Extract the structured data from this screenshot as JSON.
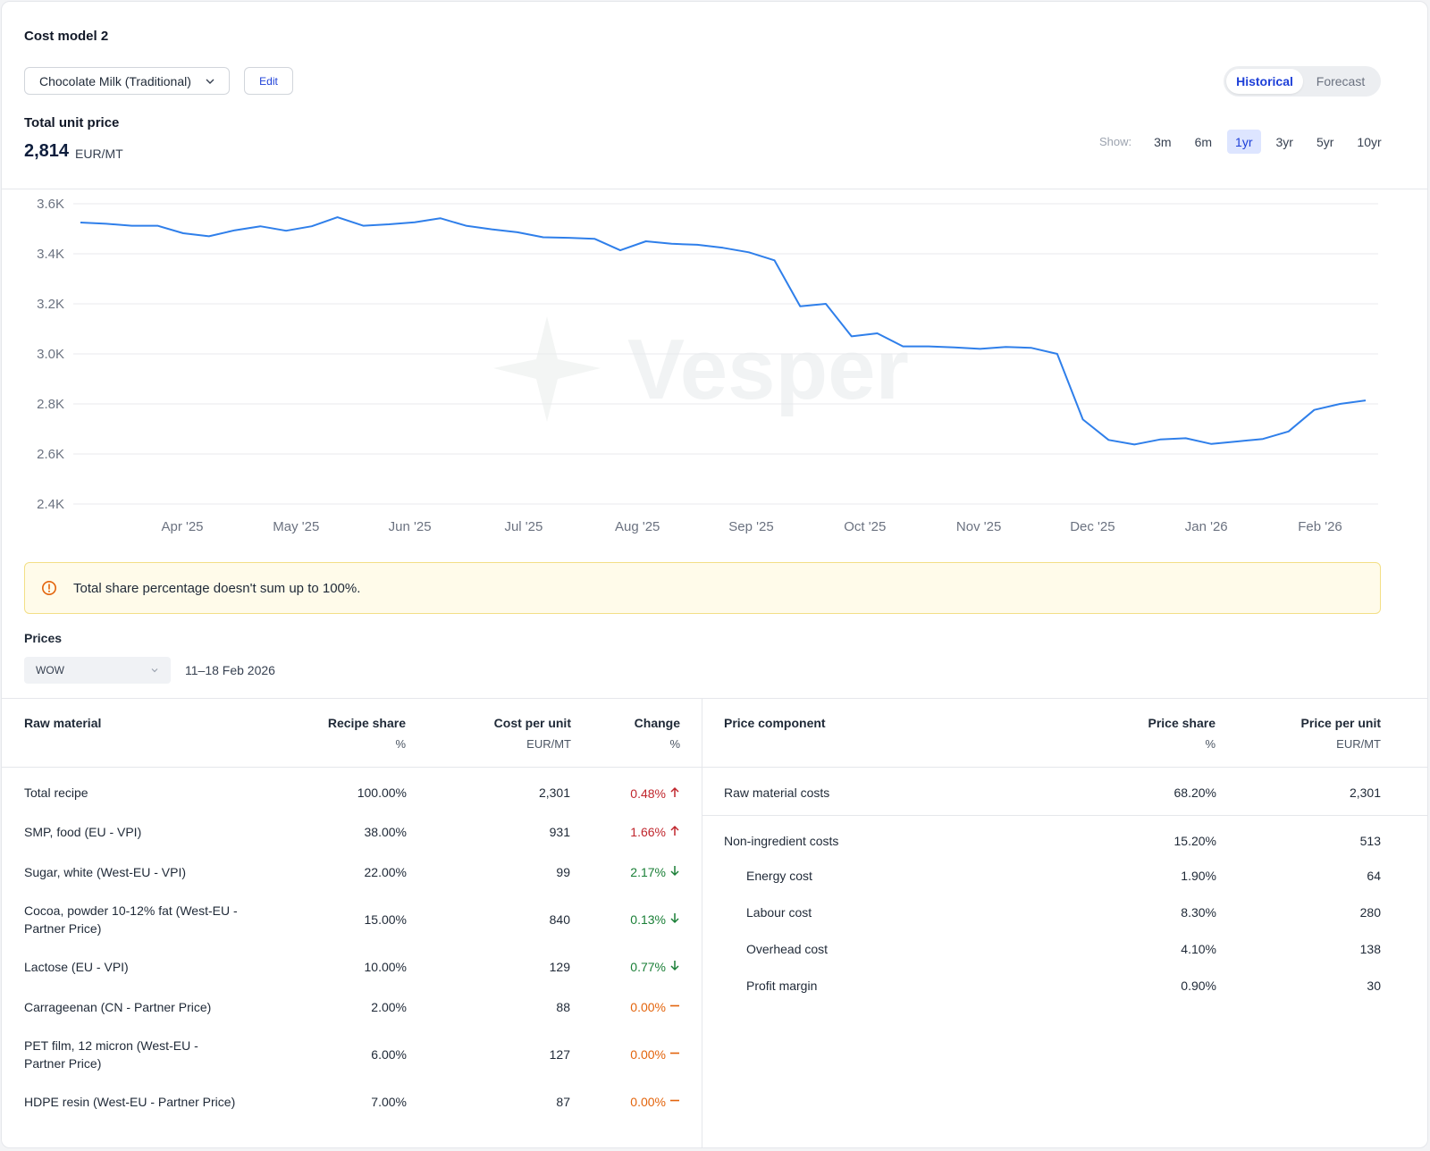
{
  "header": {
    "title": "Cost model 2",
    "product_select": "Chocolate Milk (Traditional)",
    "edit_label": "Edit",
    "view_toggle": [
      {
        "label": "Historical",
        "active": true
      },
      {
        "label": "Forecast",
        "active": false
      }
    ]
  },
  "summary": {
    "label": "Total unit price",
    "value": "2,814",
    "unit": "EUR/MT"
  },
  "range_selector": {
    "label": "Show:",
    "options": [
      "3m",
      "6m",
      "1yr",
      "3yr",
      "5yr",
      "10yr"
    ],
    "active": "1yr"
  },
  "chart_data": {
    "type": "line",
    "series": [
      {
        "values": [
          3525,
          3520,
          3512,
          3512,
          3482,
          3470,
          3494,
          3510,
          3492,
          3510,
          3546,
          3512,
          3518,
          3526,
          3542,
          3512,
          3498,
          3486,
          3466,
          3464,
          3460,
          3414,
          3450,
          3440,
          3436,
          3424,
          3406,
          3374,
          3190,
          3200,
          3070,
          3082,
          3030,
          3030,
          3026,
          3020,
          3028,
          3024,
          3000,
          2738,
          2656,
          2638,
          2658,
          2663,
          2640,
          2650,
          2660,
          2690,
          2776,
          2800,
          2814
        ]
      }
    ],
    "x_ticks": [
      "Apr '25",
      "May '25",
      "Jun '25",
      "Jul '25",
      "Aug '25",
      "Sep '25",
      "Oct '25",
      "Nov '25",
      "Dec '25",
      "Jan '26",
      "Feb '26"
    ],
    "y_ticks": [
      "3.6K",
      "3.4K",
      "3.2K",
      "3.0K",
      "2.8K",
      "2.6K",
      "2.4K"
    ],
    "ylim": [
      2400,
      3600
    ],
    "grid": true,
    "color": "#2f7fea",
    "watermark": "Vesper"
  },
  "alert": {
    "message": "Total share percentage doesn't sum up to 100%."
  },
  "prices": {
    "label": "Prices",
    "period": "WOW",
    "date_range": "11–18 Feb 2026"
  },
  "raw_materials": {
    "headers": {
      "name": "Raw material",
      "share": "Recipe share",
      "share_unit": "%",
      "cost": "Cost per unit",
      "cost_unit": "EUR/MT",
      "change": "Change",
      "change_unit": "%"
    },
    "rows": [
      {
        "name": "Total recipe",
        "share": "100.00%",
        "cost": "2,301",
        "change": "0.48%",
        "dir": "up"
      },
      {
        "name": "SMP, food (EU - VPI)",
        "share": "38.00%",
        "cost": "931",
        "change": "1.66%",
        "dir": "up"
      },
      {
        "name": "Sugar, white (West-EU - VPI)",
        "share": "22.00%",
        "cost": "99",
        "change": "2.17%",
        "dir": "down"
      },
      {
        "name": "Cocoa, powder 10-12% fat (West-EU - Partner Price)",
        "share": "15.00%",
        "cost": "840",
        "change": "0.13%",
        "dir": "down"
      },
      {
        "name": "Lactose (EU - VPI)",
        "share": "10.00%",
        "cost": "129",
        "change": "0.77%",
        "dir": "down"
      },
      {
        "name": "Carrageenan (CN - Partner Price)",
        "share": "2.00%",
        "cost": "88",
        "change": "0.00%",
        "dir": "flat"
      },
      {
        "name": "PET film, 12 micron (West-EU - Partner Price)",
        "share": "6.00%",
        "cost": "127",
        "change": "0.00%",
        "dir": "flat"
      },
      {
        "name": "HDPE resin (West-EU - Partner Price)",
        "share": "7.00%",
        "cost": "87",
        "change": "0.00%",
        "dir": "flat"
      }
    ]
  },
  "price_components": {
    "headers": {
      "name": "Price component",
      "share": "Price share",
      "share_unit": "%",
      "price": "Price per unit",
      "price_unit": "EUR/MT"
    },
    "rows": [
      {
        "name": "Raw material costs",
        "share": "68.20%",
        "price": "2,301"
      },
      {
        "name": "Non-ingredient costs",
        "share": "15.20%",
        "price": "513"
      },
      {
        "name": "Energy cost",
        "share": "1.90%",
        "price": "64"
      },
      {
        "name": "Labour cost",
        "share": "8.30%",
        "price": "280"
      },
      {
        "name": "Overhead cost",
        "share": "4.10%",
        "price": "138"
      },
      {
        "name": "Profit margin",
        "share": "0.90%",
        "price": "30"
      }
    ]
  }
}
